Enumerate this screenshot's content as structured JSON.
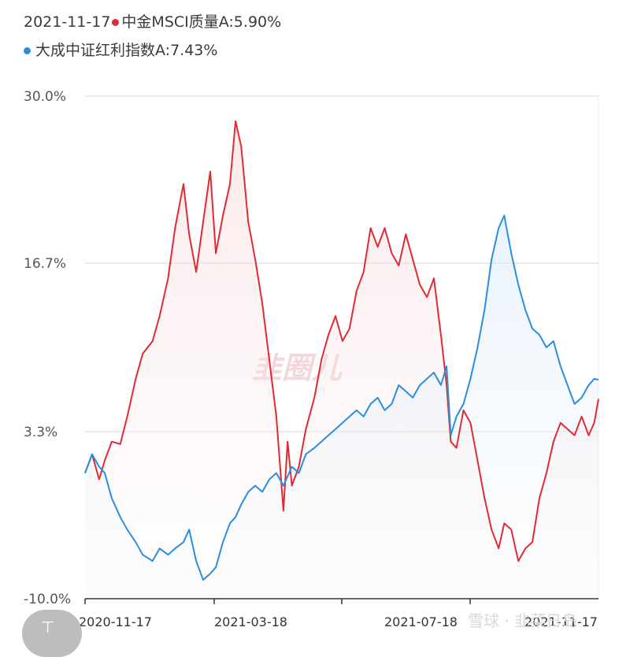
{
  "legend": {
    "date": "2021-11-17",
    "series1_label": "中金MSCI质量A:5.90%",
    "series2_label": "大成中证红利指数A:7.43%"
  },
  "watermark_text": "韭圈儿",
  "credit_text": "雪球 · 韭菜日岛",
  "colors": {
    "series1": "#e02b35",
    "series2": "#2a8ee0",
    "grid": "#d9d9d9",
    "axis": "#333333"
  },
  "chart_data": {
    "type": "line",
    "x_tick_labels": [
      "2020-11-17",
      "2021-03-18",
      "2021-07-18",
      "2021-11-17"
    ],
    "y_tick_labels": [
      "30.0%",
      "16.7%",
      "3.3%",
      "-10.0%"
    ],
    "y_ticks": [
      30.0,
      16.7,
      3.3,
      -10.0
    ],
    "ylim": [
      -10.0,
      30.0
    ],
    "x_range": [
      "2020-11-17",
      "2021-11-17"
    ],
    "grid": "horizontal",
    "series": [
      {
        "name": "中金MSCI质量A:5.90%",
        "color": "#e02b35",
        "points": [
          [
            "2020-11-17",
            0.0
          ],
          [
            "2020-11-22",
            1.5
          ],
          [
            "2020-11-27",
            -0.5
          ],
          [
            "2020-12-01",
            1.0
          ],
          [
            "2020-12-06",
            2.5
          ],
          [
            "2020-12-12",
            2.3
          ],
          [
            "2020-12-17",
            4.5
          ],
          [
            "2020-12-23",
            7.5
          ],
          [
            "2020-12-28",
            9.5
          ],
          [
            "2021-01-04",
            10.5
          ],
          [
            "2021-01-09",
            12.5
          ],
          [
            "2021-01-15",
            15.5
          ],
          [
            "2021-01-20",
            19.5
          ],
          [
            "2021-01-26",
            23.0
          ],
          [
            "2021-01-30",
            19.0
          ],
          [
            "2021-02-04",
            16.0
          ],
          [
            "2021-02-09",
            20.0
          ],
          [
            "2021-02-14",
            24.0
          ],
          [
            "2021-02-18",
            17.5
          ],
          [
            "2021-02-23",
            20.5
          ],
          [
            "2021-02-28",
            23.0
          ],
          [
            "2021-03-04",
            28.0
          ],
          [
            "2021-03-08",
            26.0
          ],
          [
            "2021-03-13",
            20.0
          ],
          [
            "2021-03-18",
            17.0
          ],
          [
            "2021-03-23",
            13.5
          ],
          [
            "2021-03-28",
            9.0
          ],
          [
            "2021-04-02",
            4.5
          ],
          [
            "2021-04-05",
            0.0
          ],
          [
            "2021-04-07",
            -3.0
          ],
          [
            "2021-04-10",
            2.5
          ],
          [
            "2021-04-13",
            -1.0
          ],
          [
            "2021-04-18",
            0.5
          ],
          [
            "2021-04-23",
            3.5
          ],
          [
            "2021-04-29",
            6.0
          ],
          [
            "2021-05-04",
            9.0
          ],
          [
            "2021-05-09",
            11.0
          ],
          [
            "2021-05-14",
            12.5
          ],
          [
            "2021-05-19",
            10.5
          ],
          [
            "2021-05-24",
            11.5
          ],
          [
            "2021-05-29",
            14.5
          ],
          [
            "2021-06-03",
            16.0
          ],
          [
            "2021-06-08",
            19.5
          ],
          [
            "2021-06-13",
            18.0
          ],
          [
            "2021-06-18",
            19.5
          ],
          [
            "2021-06-23",
            17.5
          ],
          [
            "2021-06-28",
            16.5
          ],
          [
            "2021-07-03",
            19.0
          ],
          [
            "2021-07-08",
            17.0
          ],
          [
            "2021-07-13",
            15.0
          ],
          [
            "2021-07-18",
            14.0
          ],
          [
            "2021-07-23",
            15.5
          ],
          [
            "2021-07-28",
            11.0
          ],
          [
            "2021-08-01",
            7.0
          ],
          [
            "2021-08-04",
            2.5
          ],
          [
            "2021-08-08",
            2.0
          ],
          [
            "2021-08-13",
            5.0
          ],
          [
            "2021-08-18",
            4.0
          ],
          [
            "2021-08-23",
            1.0
          ],
          [
            "2021-08-28",
            -2.0
          ],
          [
            "2021-09-02",
            -4.5
          ],
          [
            "2021-09-07",
            -6.0
          ],
          [
            "2021-09-11",
            -4.0
          ],
          [
            "2021-09-16",
            -4.5
          ],
          [
            "2021-09-21",
            -7.0
          ],
          [
            "2021-09-26",
            -6.0
          ],
          [
            "2021-10-01",
            -5.5
          ],
          [
            "2021-10-06",
            -2.0
          ],
          [
            "2021-10-11",
            0.0
          ],
          [
            "2021-10-16",
            2.5
          ],
          [
            "2021-10-21",
            4.0
          ],
          [
            "2021-10-26",
            3.5
          ],
          [
            "2021-10-31",
            3.0
          ],
          [
            "2021-11-05",
            4.5
          ],
          [
            "2021-11-10",
            3.0
          ],
          [
            "2021-11-14",
            4.0
          ],
          [
            "2021-11-17",
            5.9
          ]
        ]
      },
      {
        "name": "大成中证红利指数A:7.43%",
        "color": "#2a8ee0",
        "points": [
          [
            "2020-11-17",
            0.0
          ],
          [
            "2020-11-22",
            1.5
          ],
          [
            "2020-11-27",
            0.5
          ],
          [
            "2020-12-01",
            0.0
          ],
          [
            "2020-12-06",
            -2.0
          ],
          [
            "2020-12-12",
            -3.5
          ],
          [
            "2020-12-17",
            -4.5
          ],
          [
            "2020-12-23",
            -5.5
          ],
          [
            "2020-12-28",
            -6.5
          ],
          [
            "2021-01-04",
            -7.0
          ],
          [
            "2021-01-09",
            -6.0
          ],
          [
            "2021-01-15",
            -6.5
          ],
          [
            "2021-01-20",
            -6.0
          ],
          [
            "2021-01-26",
            -5.5
          ],
          [
            "2021-01-30",
            -4.5
          ],
          [
            "2021-02-04",
            -7.0
          ],
          [
            "2021-02-09",
            -8.5
          ],
          [
            "2021-02-14",
            -8.0
          ],
          [
            "2021-02-18",
            -7.5
          ],
          [
            "2021-02-23",
            -5.5
          ],
          [
            "2021-02-28",
            -4.0
          ],
          [
            "2021-03-04",
            -3.5
          ],
          [
            "2021-03-08",
            -2.5
          ],
          [
            "2021-03-13",
            -1.5
          ],
          [
            "2021-03-18",
            -1.0
          ],
          [
            "2021-03-23",
            -1.5
          ],
          [
            "2021-03-28",
            -0.5
          ],
          [
            "2021-04-02",
            0.0
          ],
          [
            "2021-04-07",
            -1.0
          ],
          [
            "2021-04-13",
            0.5
          ],
          [
            "2021-04-18",
            0.0
          ],
          [
            "2021-04-23",
            1.5
          ],
          [
            "2021-04-29",
            2.0
          ],
          [
            "2021-05-04",
            2.5
          ],
          [
            "2021-05-09",
            3.0
          ],
          [
            "2021-05-14",
            3.5
          ],
          [
            "2021-05-19",
            4.0
          ],
          [
            "2021-05-24",
            4.5
          ],
          [
            "2021-05-29",
            5.0
          ],
          [
            "2021-06-03",
            4.5
          ],
          [
            "2021-06-08",
            5.5
          ],
          [
            "2021-06-13",
            6.0
          ],
          [
            "2021-06-18",
            5.0
          ],
          [
            "2021-06-23",
            5.5
          ],
          [
            "2021-06-28",
            7.0
          ],
          [
            "2021-07-03",
            6.5
          ],
          [
            "2021-07-08",
            6.0
          ],
          [
            "2021-07-13",
            7.0
          ],
          [
            "2021-07-18",
            7.5
          ],
          [
            "2021-07-23",
            8.0
          ],
          [
            "2021-07-28",
            7.0
          ],
          [
            "2021-08-01",
            8.5
          ],
          [
            "2021-08-04",
            3.0
          ],
          [
            "2021-08-08",
            4.5
          ],
          [
            "2021-08-13",
            5.5
          ],
          [
            "2021-08-18",
            7.5
          ],
          [
            "2021-08-23",
            10.0
          ],
          [
            "2021-08-28",
            13.0
          ],
          [
            "2021-09-02",
            17.0
          ],
          [
            "2021-09-07",
            19.5
          ],
          [
            "2021-09-11",
            20.5
          ],
          [
            "2021-09-16",
            17.5
          ],
          [
            "2021-09-21",
            15.0
          ],
          [
            "2021-09-26",
            13.0
          ],
          [
            "2021-10-01",
            11.5
          ],
          [
            "2021-10-06",
            11.0
          ],
          [
            "2021-10-11",
            10.0
          ],
          [
            "2021-10-16",
            10.5
          ],
          [
            "2021-10-21",
            8.5
          ],
          [
            "2021-10-26",
            7.0
          ],
          [
            "2021-10-31",
            5.5
          ],
          [
            "2021-11-05",
            6.0
          ],
          [
            "2021-11-10",
            7.0
          ],
          [
            "2021-11-14",
            7.5
          ],
          [
            "2021-11-17",
            7.43
          ]
        ]
      }
    ]
  }
}
